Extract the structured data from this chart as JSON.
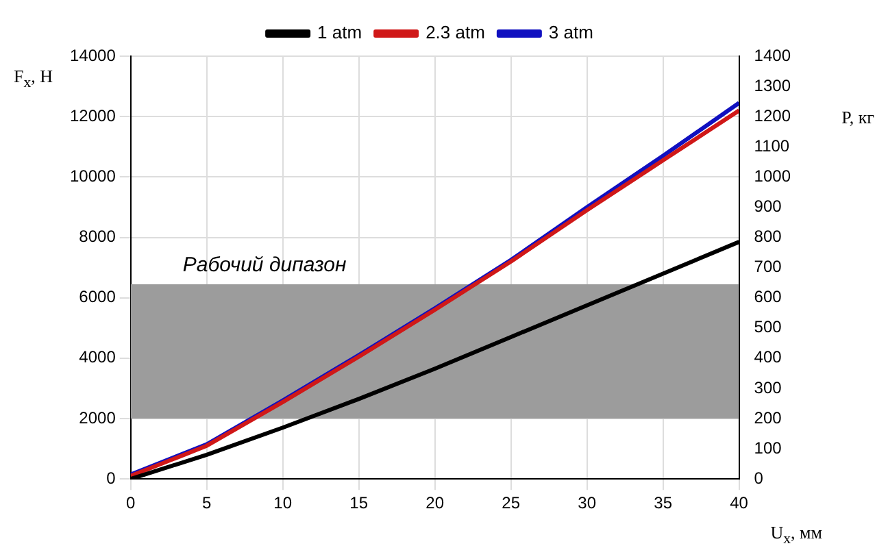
{
  "chart_data": {
    "type": "line",
    "xlabel": "U$_{x}$, мм",
    "ylabel": "F$_{x}$, Н",
    "y2label": "P, кг",
    "xlim": [
      0,
      40
    ],
    "xticks": [
      0,
      5,
      10,
      15,
      20,
      25,
      30,
      35,
      40
    ],
    "ylim": [
      0,
      14000
    ],
    "yticks": [
      0,
      2000,
      4000,
      6000,
      8000,
      10000,
      12000,
      14000
    ],
    "y2lim": [
      0,
      1400
    ],
    "y2ticks": [
      0,
      100,
      200,
      300,
      400,
      500,
      600,
      700,
      800,
      900,
      1000,
      1100,
      1200,
      1300,
      1400
    ],
    "x": [
      0,
      5,
      10,
      15,
      20,
      25,
      30,
      35,
      40
    ],
    "series": [
      {
        "name": "1 atm",
        "color": "#000000",
        "values": [
          0,
          800,
          1700,
          2650,
          3650,
          4700,
          5750,
          6800,
          7850
        ]
      },
      {
        "name": "2.3 atm",
        "color": "#d01818",
        "values": [
          100,
          1100,
          2550,
          4050,
          5600,
          7200,
          8900,
          10550,
          12200
        ]
      },
      {
        "name": "3 atm",
        "color": "#1010c0",
        "values": [
          150,
          1150,
          2600,
          4100,
          5650,
          7250,
          9000,
          10700,
          12450
        ]
      }
    ],
    "bands": [
      {
        "axis": "y",
        "from": 2000,
        "to": 6450,
        "label": "Рабочий дипазон",
        "color": "#9c9c9c"
      }
    ],
    "grid": true,
    "legend": "top",
    "marker": "none",
    "line_style": "solid"
  }
}
